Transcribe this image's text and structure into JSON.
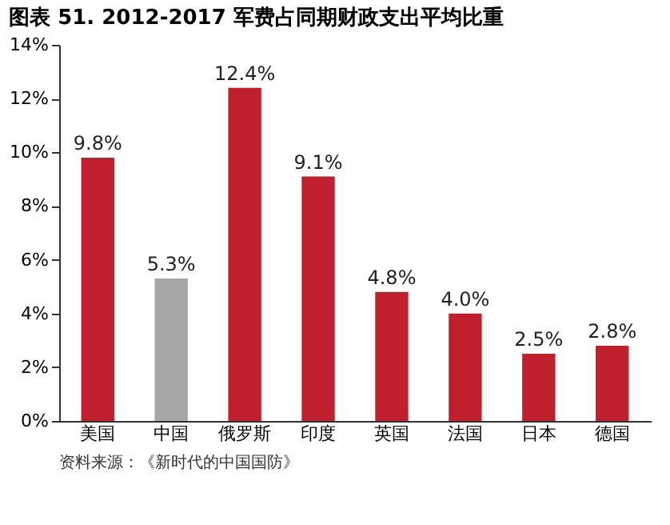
{
  "chart_data": {
    "type": "bar",
    "title": "图表 51. 2012-2017 军费占同期财政支出平均比重",
    "categories": [
      "美国",
      "中国",
      "俄罗斯",
      "印度",
      "英国",
      "法国",
      "日本",
      "德国"
    ],
    "values": [
      9.8,
      5.3,
      12.4,
      9.1,
      4.8,
      4.0,
      2.5,
      2.8
    ],
    "colors": [
      "#c0202e",
      "#a6a6a6",
      "#c0202e",
      "#c0202e",
      "#c0202e",
      "#c0202e",
      "#c0202e",
      "#c0202e"
    ],
    "value_labels": [
      "9.8%",
      "5.3%",
      "12.4%",
      "9.1%",
      "4.8%",
      "4.0%",
      "2.5%",
      "2.8%"
    ],
    "ylim": [
      0,
      14
    ],
    "yticks": [
      {
        "value": 0,
        "label": "0%"
      },
      {
        "value": 2,
        "label": "2%"
      },
      {
        "value": 4,
        "label": "4%"
      },
      {
        "value": 6,
        "label": "6%"
      },
      {
        "value": 8,
        "label": "8%"
      },
      {
        "value": 10,
        "label": "10%"
      },
      {
        "value": 12,
        "label": "12%"
      },
      {
        "value": 14,
        "label": "14%"
      }
    ],
    "grid": false,
    "annotations": [
      "资料来源：《新时代的中国国防》"
    ]
  }
}
